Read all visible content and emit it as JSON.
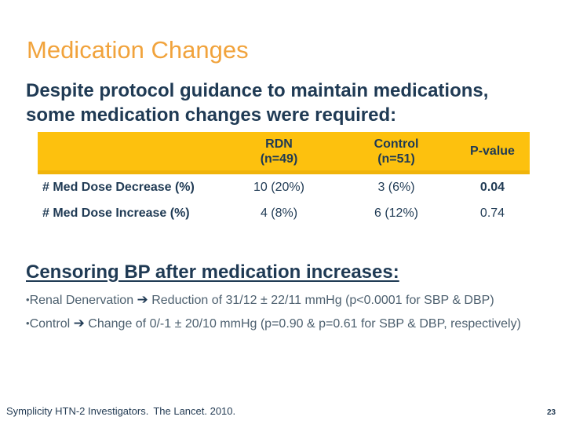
{
  "slide": {
    "title": "Medication Changes",
    "subtitle_line1": "Despite protocol guidance to maintain medications,",
    "subtitle_line2": "some medication changes were required:",
    "page_number": "23"
  },
  "table": {
    "headers": {
      "rdn_line1": "RDN",
      "rdn_line2": "(n=49)",
      "control_line1": "Control",
      "control_line2": "(n=51)",
      "pvalue": "P-value"
    },
    "rows": [
      {
        "label": "# Med Dose Decrease (%)",
        "rdn": "10 (20%)",
        "control": "3 (6%)",
        "pvalue": "0.04"
      },
      {
        "label": "# Med Dose Increase (%)",
        "rdn": "4 (8%)",
        "control": "6 (12%)",
        "pvalue": "0.74"
      }
    ]
  },
  "censoring": {
    "heading": "Censoring BP after medication increases:",
    "bullets": [
      {
        "marker": "•",
        "lead": "Renal Denervation ",
        "arrow": "➔",
        "rest": " Reduction of 31/12 ± 22/11 mmHg (p<0.0001 for SBP & DBP)"
      },
      {
        "marker": "•",
        "lead": "Control ",
        "arrow": "➔",
        "rest": " Change of 0/-1 ± 20/10 mmHg (p=0.90 & p=0.61 for SBP & DBP, respectively)"
      }
    ]
  },
  "footer": {
    "citation": "Symplicity HTN-2 Investigators.",
    "citation2": "The Lancet. 2010."
  },
  "colors": {
    "accent_orange": "#F1A33C",
    "header_gold": "#FDC10E",
    "navy_text": "#1F3A54",
    "bullet_text": "#4D606F"
  }
}
